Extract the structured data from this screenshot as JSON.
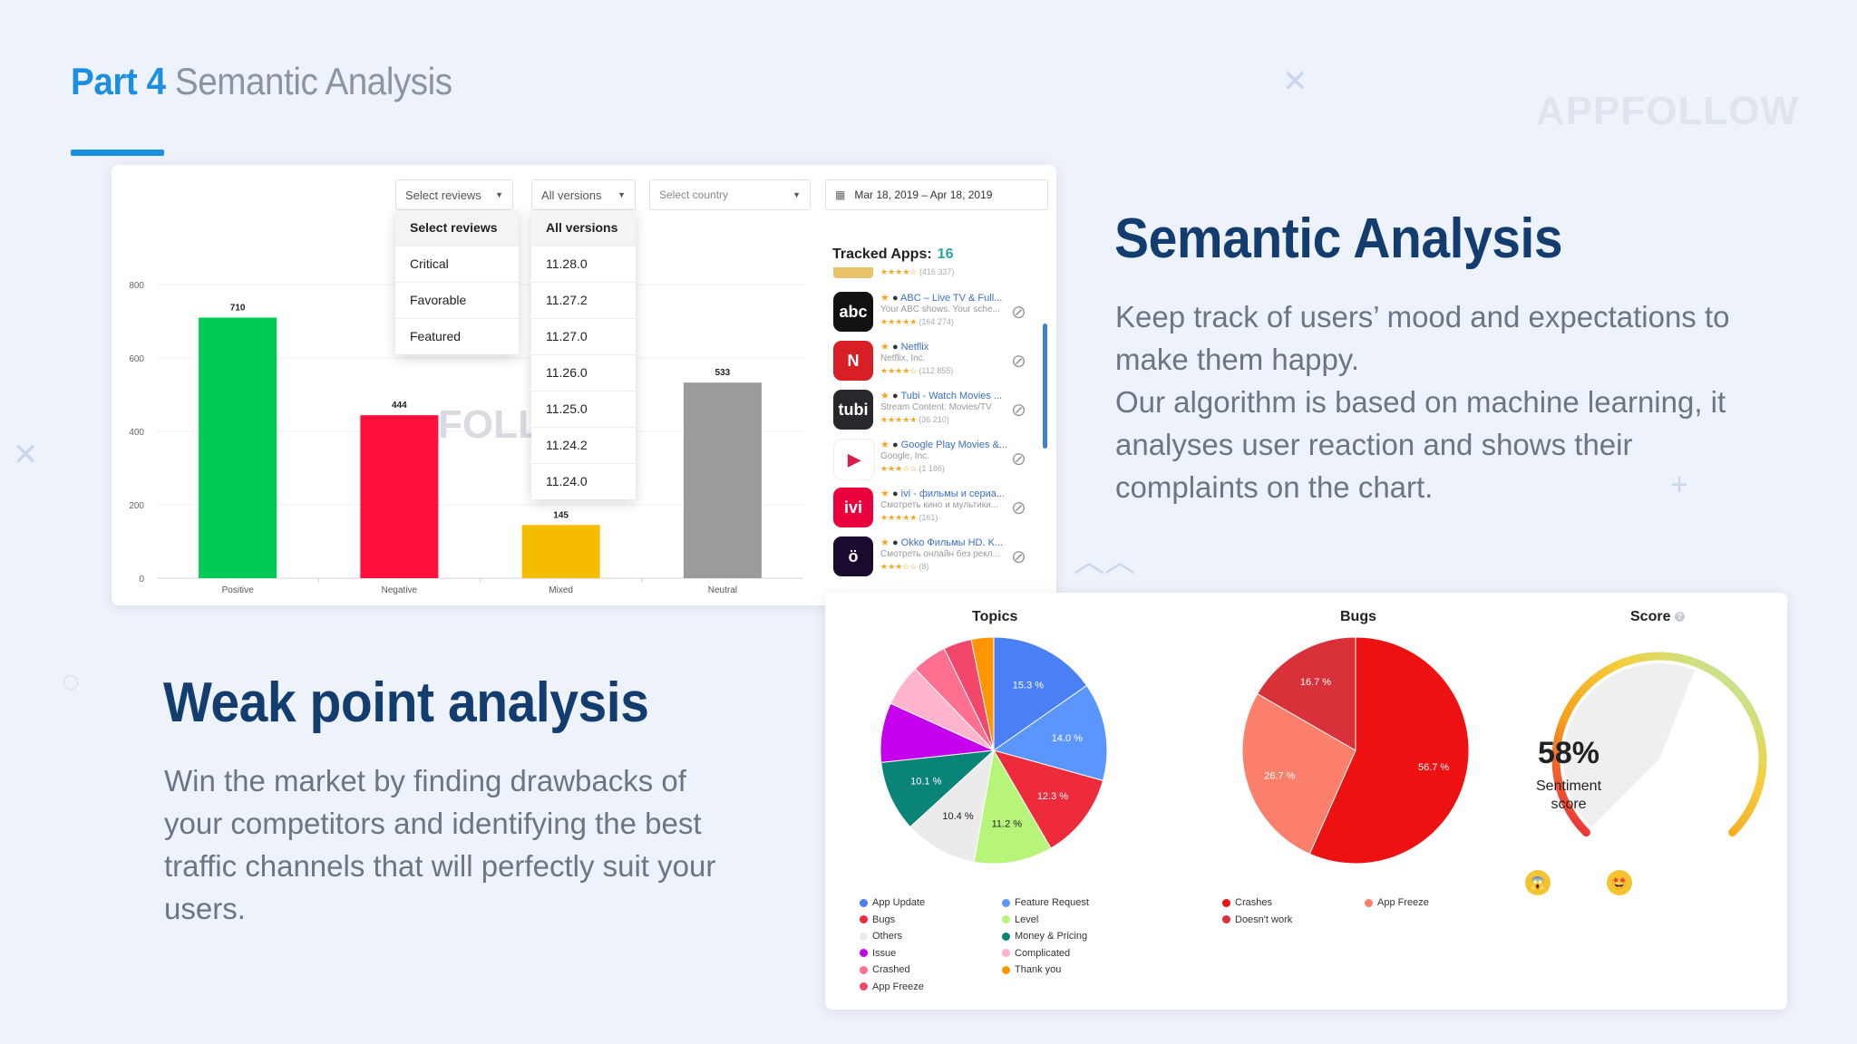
{
  "header": {
    "part_number": "Part 4",
    "part_subtitle": "Semantic Analysis",
    "brand": "APPFOLLOW"
  },
  "review_chart": {
    "filters": {
      "reviews_placeholder": "Select reviews",
      "versions_placeholder": "All versions",
      "country_placeholder": "Select country",
      "date_range": "Mar 18, 2019 – Apr 18, 2019"
    },
    "reviews_menu": [
      "Select reviews",
      "Critical",
      "Favorable",
      "Featured"
    ],
    "versions_menu": [
      "All versions",
      "11.28.0",
      "11.27.2",
      "11.27.0",
      "11.26.0",
      "11.25.0",
      "11.24.2",
      "11.24.0"
    ],
    "watermark": "FOLL",
    "tracked_apps_label": "Tracked Apps:",
    "tracked_apps_count": "16",
    "apps": [
      {
        "name": "ABC – Live TV & Full...",
        "publisher": "Your ABC shows. Your sche...",
        "rating": "★★★★★",
        "count": "(164 274)",
        "icon_text": "abc",
        "color": "#111111"
      },
      {
        "name": "Netflix",
        "publisher": "Netflix, Inc.",
        "rating": "★★★★☆",
        "count": "(112 855)",
        "icon_text": "N",
        "color": "#d81f26"
      },
      {
        "name": "Tubi - Watch Movies ...",
        "publisher": "Stream Content: Movies/TV",
        "rating": "★★★★★",
        "count": "(36 210)",
        "icon_text": "tubi",
        "color": "#26282b"
      },
      {
        "name": "Google Play Movies &...",
        "publisher": "Google, Inc.",
        "rating": "★★★☆☆",
        "count": "(1 186)",
        "icon_text": "▶",
        "color": "#ffffff"
      },
      {
        "name": "ivi - фильмы и сериа...",
        "publisher": "Смотреть кино и мультики...",
        "rating": "★★★★★",
        "count": "(161)",
        "icon_text": "ivi",
        "color": "#ea003d"
      },
      {
        "name": "Okko Фильмы HD. K...",
        "publisher": "Смотреть онлайн без рекл...",
        "rating": "★★★☆☆",
        "count": "(8)",
        "icon_text": "ö",
        "color": "#1a0b2e"
      }
    ],
    "partial_top_app_count": "(416 337)"
  },
  "chart_data": [
    {
      "type": "bar",
      "categories": [
        "Positive",
        "Negative",
        "Mixed",
        "Neutral"
      ],
      "values": [
        710,
        444,
        145,
        533
      ],
      "colors": [
        "#00cc55",
        "#ff0f3c",
        "#f5bc00",
        "#9b9b9b"
      ],
      "ylim": [
        0,
        800
      ],
      "yticks": [
        0,
        200,
        400,
        600,
        800
      ],
      "grid": true
    },
    {
      "type": "pie",
      "title": "Topics",
      "labels": [
        "App Update",
        "Feature Request",
        "Bugs",
        "Level",
        "Others",
        "Money & Pricing",
        "Issue",
        "Complicated",
        "Crashed",
        "Thank you",
        "App Freeze"
      ],
      "slices": [
        {
          "label": "App Update",
          "value": 15.3,
          "color": "#4a7ff5",
          "shown": "15.3 %"
        },
        {
          "label": "Feature Request",
          "value": 14.0,
          "color": "#5b96ff",
          "shown": "14.0 %"
        },
        {
          "label": "Bugs",
          "value": 12.3,
          "color": "#ee2b3a",
          "shown": "12.3 %"
        },
        {
          "label": "Level",
          "value": 11.2,
          "color": "#b6f57a",
          "shown": "11.2 %"
        },
        {
          "label": "Others",
          "value": 10.4,
          "color": "#ebebeb",
          "shown": "10.4 %"
        },
        {
          "label": "Money & Pricing",
          "value": 10.1,
          "color": "#0b8478",
          "shown": "10.1 %"
        },
        {
          "label": "Issue",
          "value": 8.5,
          "color": "#c400ec",
          "shown": ""
        },
        {
          "label": "Complicated",
          "value": 6.0,
          "color": "#ffb3cc",
          "shown": ""
        },
        {
          "label": "Crashed",
          "value": 5.0,
          "color": "#ff6f8f",
          "shown": ""
        },
        {
          "label": "App Freeze",
          "value": 4.0,
          "color": "#f2466a",
          "shown": ""
        },
        {
          "label": "Thank you",
          "value": 3.2,
          "color": "#ff9500",
          "shown": ""
        }
      ],
      "legend_colors": [
        "#4a7ff5",
        "#5b96ff",
        "#ee2b3a",
        "#b6f57a",
        "#ebebeb",
        "#0b8478",
        "#c400ec",
        "#ffb3cc",
        "#ff6f8f",
        "#ff9500",
        "#f2466a"
      ]
    },
    {
      "type": "pie",
      "title": "Bugs",
      "slices": [
        {
          "label": "Crashes",
          "value": 56.7,
          "color": "#ee1111",
          "shown": "56.7 %"
        },
        {
          "label": "App Freeze",
          "value": 26.7,
          "color": "#fb7f6a",
          "shown": "26.7 %"
        },
        {
          "label": "Doesn't work",
          "value": 16.7,
          "color": "#d9313a",
          "shown": "16.7 %"
        }
      ],
      "legend": [
        "Crashes",
        "App Freeze",
        "Doesn't work"
      ],
      "legend_colors": [
        "#ee1111",
        "#fb7f6a",
        "#d9313a"
      ]
    }
  ],
  "score": {
    "title": "Score",
    "value_text": "58%",
    "value": 0.58,
    "label_line1": "Sentiment",
    "label_line2": "score"
  },
  "semantic": {
    "heading": "Semantic Analysis",
    "lines": [
      "Keep track of users’ mood and expectations to",
      "make them happy.",
      "Our algorithm is based on machine learning, it",
      "analyses user reaction and shows their",
      "complaints on the chart."
    ]
  },
  "weak": {
    "heading": "Weak point analysis",
    "lines": [
      "Win the market by finding drawbacks of",
      "your competitors and identifying the best",
      "traffic channels that will perfectly suit your",
      "users."
    ]
  }
}
